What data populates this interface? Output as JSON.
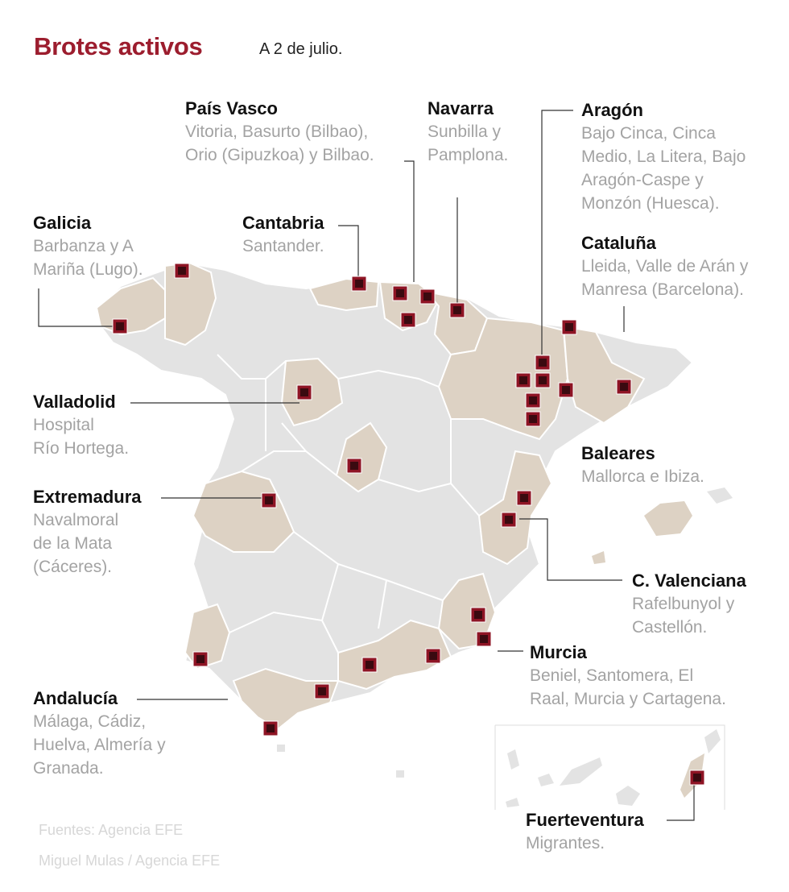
{
  "header": {
    "title": "Brotes activos",
    "date": "A 2 de julio."
  },
  "colors": {
    "title": "#9c1d2e",
    "marker_fill": "#8e1424",
    "marker_inner": "#3a0a10",
    "affected_region": "#ddd2c4",
    "land": "#e3e3e3",
    "border": "#ffffff",
    "leader_line": "#333333"
  },
  "regions": [
    {
      "name": "País Vasco",
      "places": "Vitoria, Basurto (Bilbao),\nOrio (Gipuzkoa) y Bilbao."
    },
    {
      "name": "Navarra",
      "places": "Sunbilla y\nPamplona."
    },
    {
      "name": "Aragón",
      "places": "Bajo Cinca, Cinca\nMedio, La Litera,  Bajo\nAragón-Caspe y\nMonzón (Huesca)."
    },
    {
      "name": "Galicia",
      "places": "Barbanza y A\nMariña (Lugo)."
    },
    {
      "name": "Cantabria",
      "places": "Santander."
    },
    {
      "name": "Cataluña",
      "places": "Lleida, Valle de Arán y\nManresa (Barcelona)."
    },
    {
      "name": "Valladolid",
      "places": "Hospital\nRío Hortega."
    },
    {
      "name": "Baleares",
      "places": "Mallorca e Ibiza."
    },
    {
      "name": "Extremadura",
      "places": "Navalmoral\nde la Mata\n(Cáceres)."
    },
    {
      "name": "C. Valenciana",
      "places": "Rafelbunyol y\nCastellón."
    },
    {
      "name": "Murcia",
      "places": "Beniel, Santomera, El\nRaal, Murcia y Cartagena."
    },
    {
      "name": "Andalucía",
      "places": "Málaga, Cádiz,\nHuelva, Almería y\nGranada."
    },
    {
      "name": "Fuerteventura",
      "places": "Migrantes."
    }
  ],
  "credits": {
    "sources": "Fuentes: Agencia EFE",
    "author": "Miguel Mulas / Agencia EFE"
  }
}
